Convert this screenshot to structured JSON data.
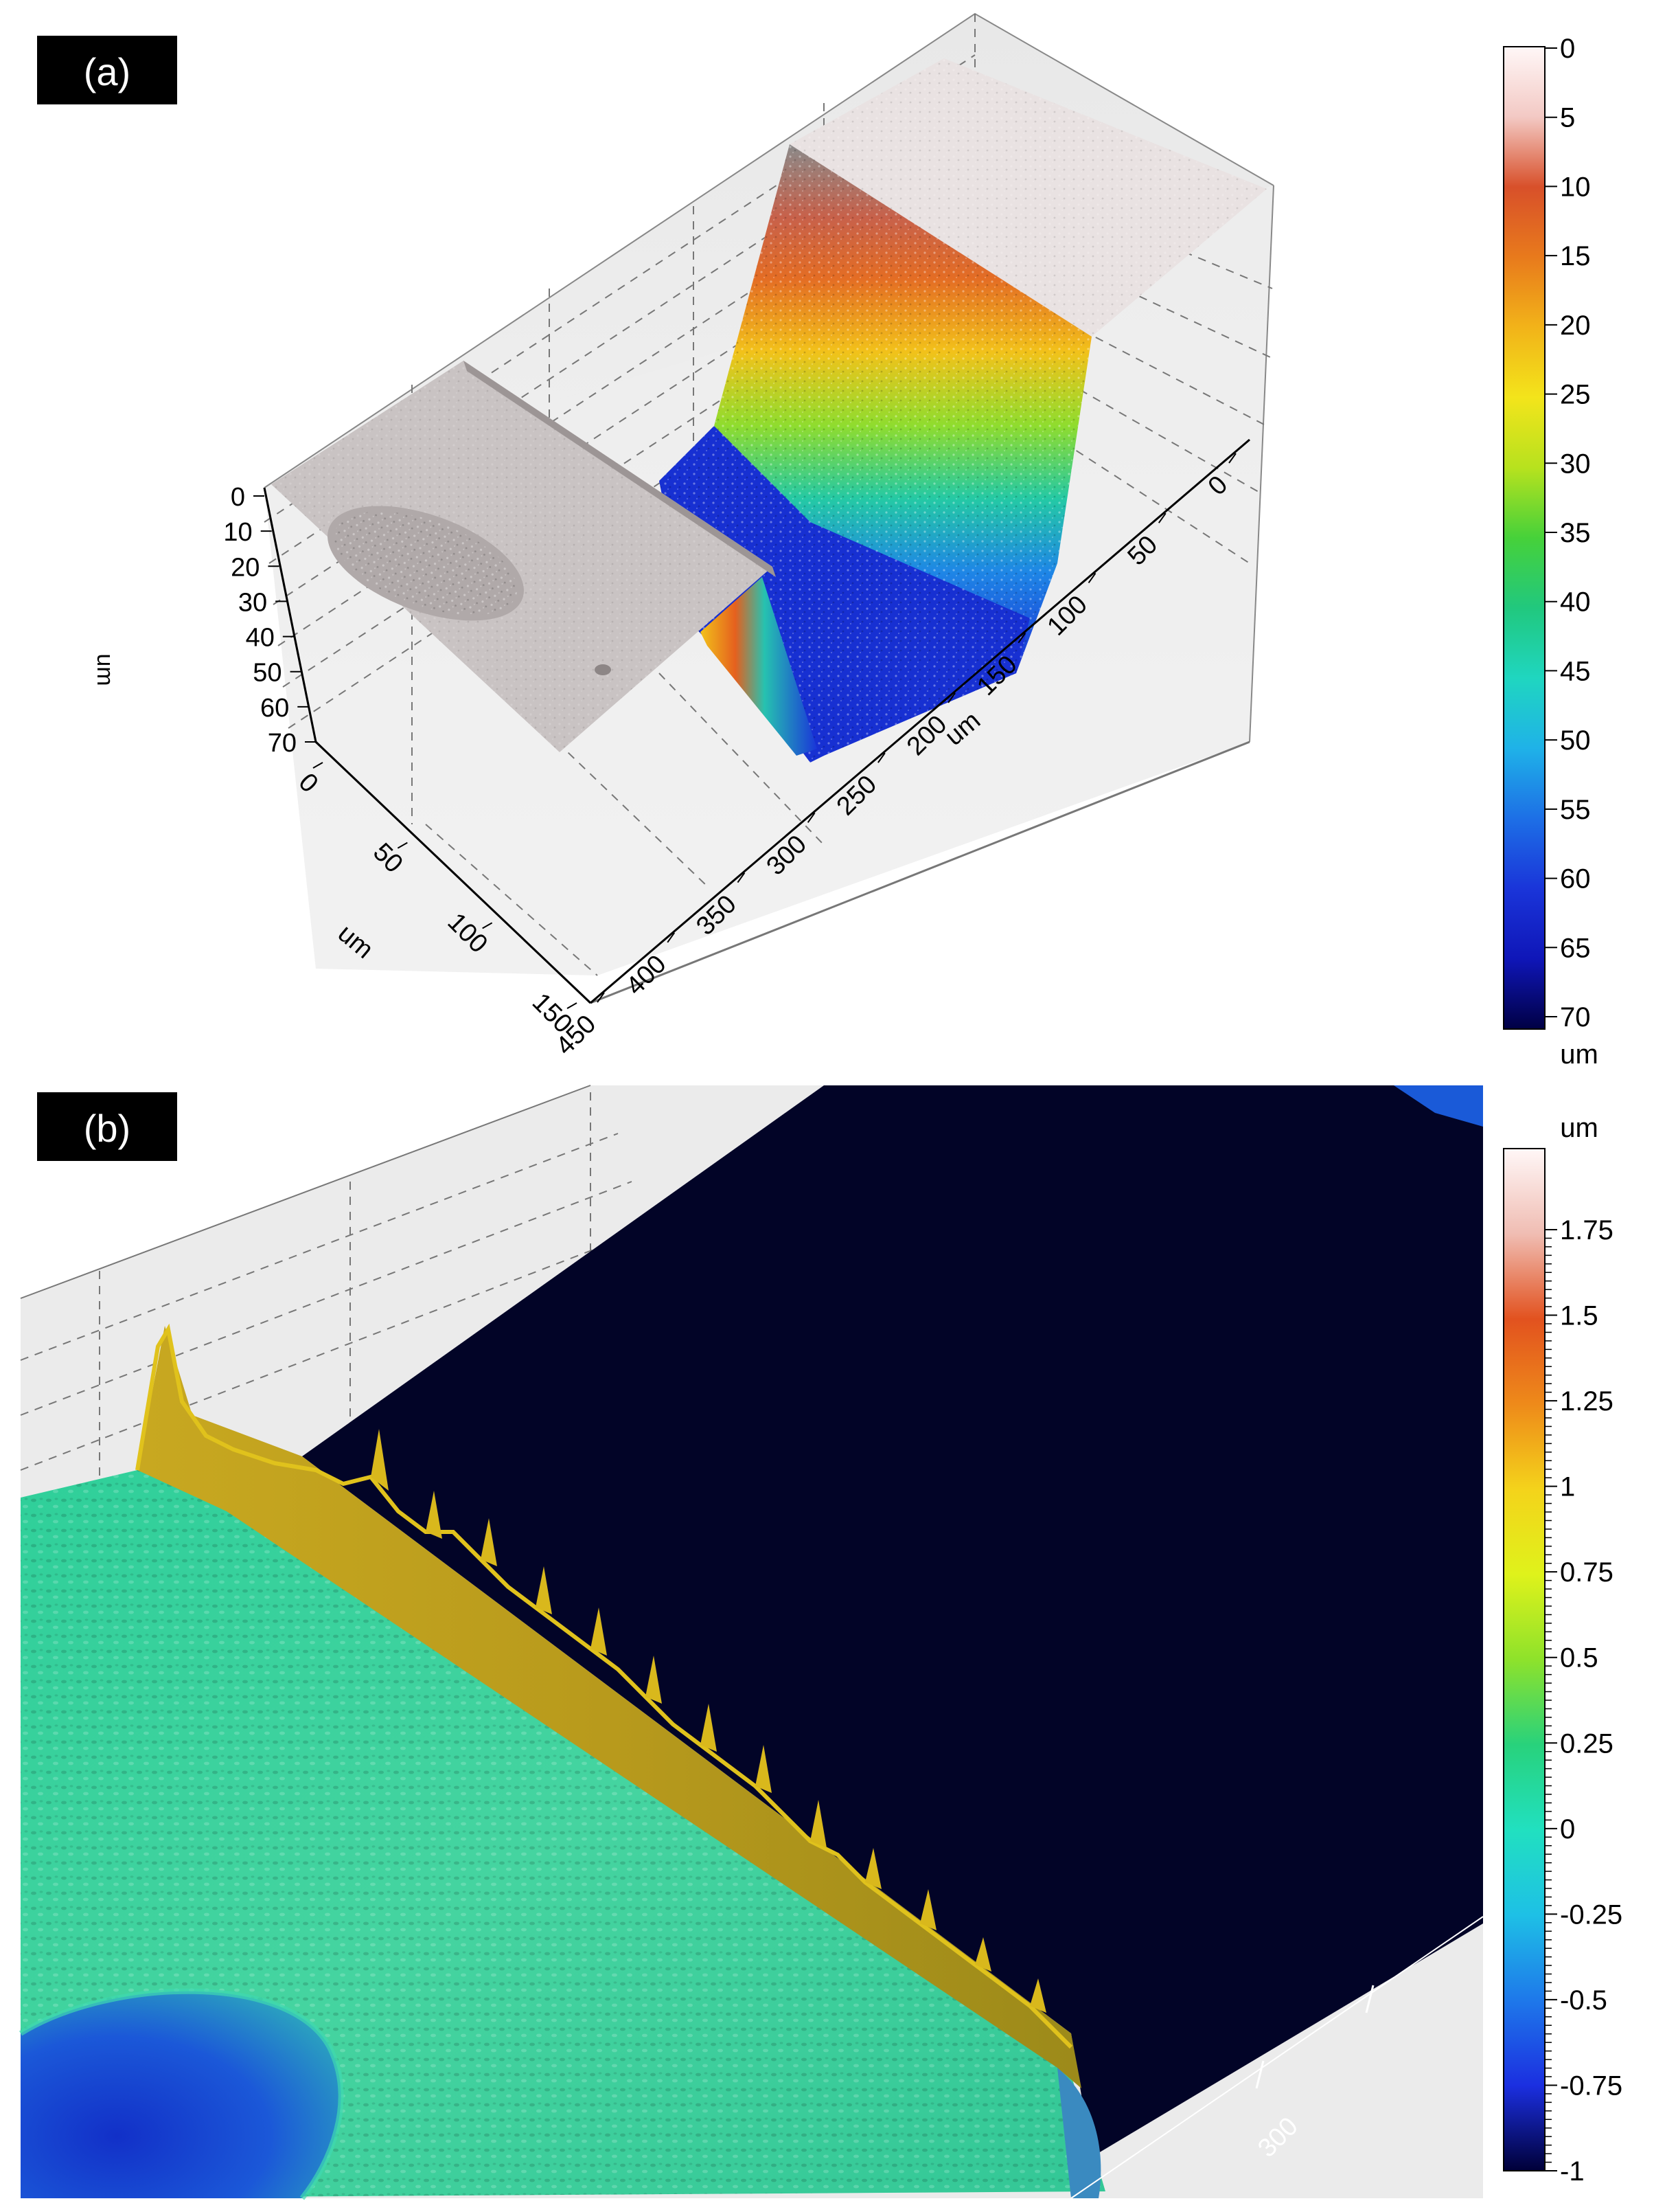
{
  "panels": [
    {
      "label": "(a)",
      "z_axis": {
        "unit": "um",
        "ticks": [
          "0",
          "10",
          "20",
          "30",
          "40",
          "50",
          "60",
          "70"
        ]
      },
      "x_axis": {
        "unit": "um",
        "ticks": [
          "0",
          "50",
          "100",
          "150",
          "200",
          "250",
          "300",
          "350",
          "400",
          "450"
        ]
      },
      "y_axis": {
        "unit": "um",
        "ticks": [
          "0",
          "50",
          "100",
          "150"
        ]
      },
      "colorbar": {
        "unit_top": "",
        "unit_bottom": "um",
        "ticks": [
          "0",
          "5",
          "10",
          "15",
          "20",
          "25",
          "30",
          "35",
          "40",
          "45",
          "50",
          "55",
          "60",
          "65",
          "70"
        ],
        "colors": [
          "#fff7f7",
          "#f3c9c4",
          "#d8502a",
          "#e87a1c",
          "#f2b319",
          "#f3e41b",
          "#b7e21e",
          "#46d13a",
          "#21c87e",
          "#1fd6c0",
          "#1fb2e8",
          "#1d6fe6",
          "#1a35d9",
          "#0f16b8",
          "#000044"
        ]
      }
    },
    {
      "label": "(b)",
      "x_axis": {
        "ticks": [
          "300"
        ]
      },
      "colorbar": {
        "unit_top": "um",
        "unit_bottom": "",
        "ticks": [
          "1.75",
          "1.5",
          "1.25",
          "1",
          "0.75",
          "0.5",
          "0.25",
          "0",
          "-0.25",
          "-0.5",
          "-0.75",
          "-1"
        ],
        "colors": [
          "#fff7f7",
          "#f0bdb3",
          "#e2521f",
          "#ee8a1a",
          "#f4d31b",
          "#dff21b",
          "#8ee22b",
          "#28d27c",
          "#21e0c0",
          "#1ec0e6",
          "#1e78ea",
          "#1b2fe0",
          "#000038"
        ]
      }
    }
  ]
}
